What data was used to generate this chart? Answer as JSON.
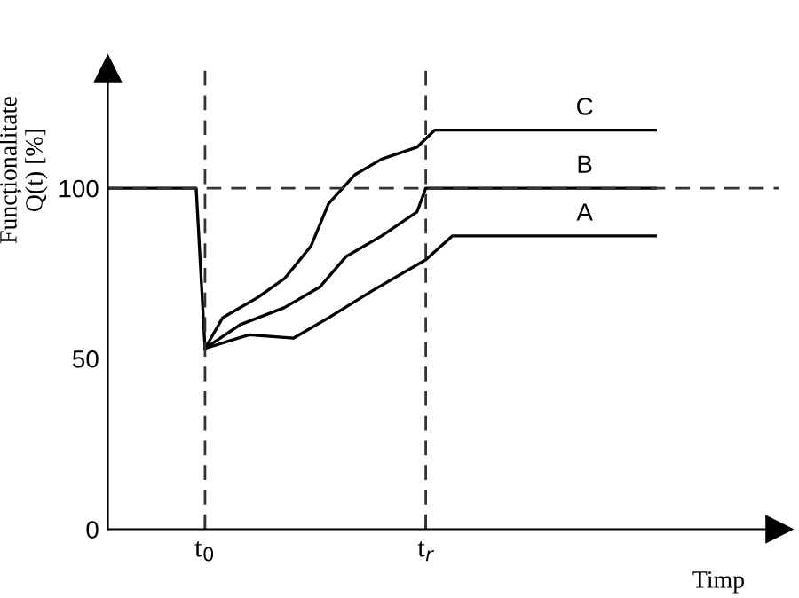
{
  "chart_data": {
    "type": "line",
    "ylabel": "Funcționalitate\nQ(t) [%]",
    "xlabel": "Timp",
    "categories": [
      null,
      null,
      null,
      null,
      null,
      null,
      null,
      null,
      null,
      null,
      null,
      "t$_{0}$",
      null,
      null,
      null,
      null,
      null,
      null,
      null,
      null,
      null,
      null,
      null,
      null,
      null,
      null,
      null,
      null,
      null,
      null,
      null,
      null,
      null,
      null,
      null,
      null,
      "t$_{r}$",
      null,
      null,
      null,
      null,
      null,
      null,
      null,
      null,
      null,
      null,
      null,
      null,
      null,
      null,
      null,
      null,
      null,
      null,
      null,
      null,
      null,
      null,
      null,
      null,
      null,
      null,
      null,
      null,
      null,
      null,
      null,
      null,
      null,
      null,
      null,
      null,
      null,
      null,
      null,
      null
    ],
    "ylim": [
      0,
      135
    ],
    "yticks": [
      0,
      50,
      100
    ],
    "series": [
      {
        "color": "#000000",
        "values": [
          100,
          100,
          100,
          100,
          100,
          100,
          100,
          100,
          100,
          100,
          100,
          53,
          null,
          null,
          null,
          null,
          null,
          null,
          null,
          null,
          null,
          null,
          null,
          null,
          null,
          null,
          null,
          null,
          null,
          null,
          null,
          null,
          null,
          null,
          null,
          null,
          null,
          null,
          null,
          null,
          null,
          null,
          null,
          null,
          null,
          null,
          null,
          null,
          null,
          null,
          null,
          null,
          null,
          null,
          null,
          null,
          null,
          null,
          null,
          null,
          null,
          null,
          null,
          null,
          null,
          null,
          null,
          null,
          null,
          null,
          null,
          null,
          null,
          null,
          null,
          null,
          null
        ]
      },
      {
        "name": "A",
        "color": "#000000",
        "values": [
          null,
          null,
          null,
          null,
          null,
          null,
          null,
          null,
          null,
          null,
          null,
          53,
          null,
          null,
          null,
          null,
          57,
          null,
          null,
          null,
          null,
          56,
          null,
          null,
          null,
          62,
          null,
          null,
          null,
          null,
          70,
          null,
          null,
          null,
          null,
          null,
          79,
          null,
          null,
          86,
          null,
          null,
          null,
          null,
          null,
          null,
          null,
          null,
          null,
          null,
          null,
          null,
          null,
          null,
          null,
          null,
          null,
          null,
          null,
          null,
          null,
          null,
          86,
          null,
          null,
          null,
          null,
          null,
          null,
          null,
          null,
          null,
          null,
          null,
          null,
          null,
          null
        ]
      },
      {
        "name": "B",
        "color": "#000000",
        "values": [
          null,
          null,
          null,
          null,
          null,
          null,
          null,
          null,
          null,
          null,
          null,
          53,
          null,
          null,
          null,
          60,
          null,
          null,
          null,
          null,
          65,
          null,
          null,
          null,
          71,
          null,
          null,
          80,
          null,
          null,
          null,
          86,
          null,
          null,
          null,
          93,
          100,
          null,
          null,
          null,
          null,
          null,
          null,
          null,
          null,
          null,
          null,
          null,
          null,
          null,
          null,
          null,
          null,
          null,
          null,
          null,
          null,
          null,
          null,
          null,
          null,
          null,
          100,
          null,
          null,
          null,
          null,
          null,
          null,
          null,
          null,
          null,
          null,
          null,
          null,
          null,
          null
        ]
      },
      {
        "name": "C",
        "color": "#000000",
        "values": [
          null,
          null,
          null,
          null,
          null,
          null,
          null,
          null,
          null,
          null,
          null,
          53,
          null,
          62,
          null,
          null,
          null,
          68,
          null,
          null,
          73.5,
          null,
          null,
          83,
          null,
          95.5,
          null,
          null,
          104,
          null,
          null,
          108.5,
          null,
          null,
          null,
          112,
          null,
          117,
          null,
          null,
          null,
          null,
          null,
          null,
          null,
          null,
          null,
          null,
          null,
          null,
          null,
          null,
          null,
          null,
          null,
          null,
          null,
          null,
          null,
          null,
          null,
          null,
          117,
          null,
          null,
          null,
          null,
          null,
          null,
          null,
          null,
          null,
          null,
          null,
          null,
          null,
          null
        ]
      }
    ],
    "ref_lines": [
      {
        "axis": "y",
        "value": 100,
        "line_style": "dashed",
        "color": "#333333"
      },
      {
        "axis": "x",
        "value": "t$_{0}$",
        "line_style": "dashed",
        "color": "#333333"
      },
      {
        "axis": "x",
        "value": "t$_{r}$",
        "line_style": "dashed",
        "color": "#333333"
      }
    ],
    "line_style": "solid",
    "marker": "none",
    "grid": false,
    "legend": false
  }
}
